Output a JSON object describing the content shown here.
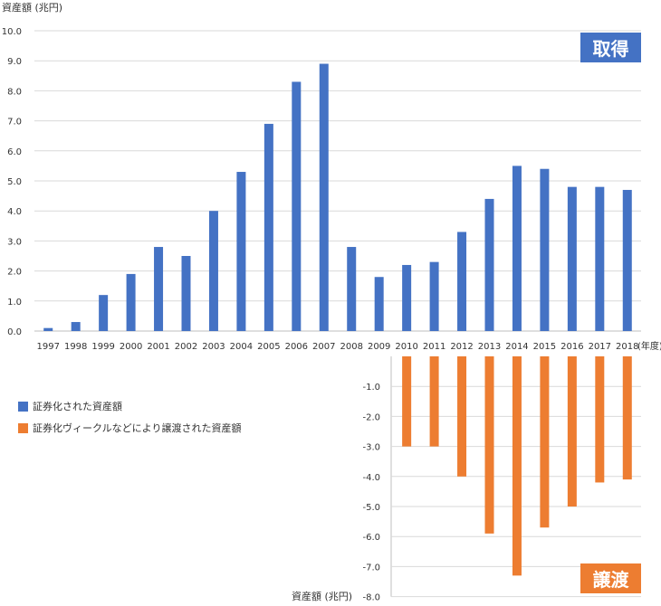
{
  "chart_data": {
    "type": "bar",
    "ylabel": "資産額 (兆円)",
    "xunit": "(年度)",
    "panels": {
      "acquisition": {
        "badge": "取得",
        "ylim": [
          0,
          10
        ],
        "yticks": [
          "0.0",
          "1.0",
          "2.0",
          "3.0",
          "4.0",
          "5.0",
          "6.0",
          "7.0",
          "8.0",
          "9.0",
          "10.0"
        ],
        "categories": [
          "1997",
          "1998",
          "1999",
          "2000",
          "2001",
          "2002",
          "2003",
          "2004",
          "2005",
          "2006",
          "2007",
          "2008",
          "2009",
          "2010",
          "2011",
          "2012",
          "2013",
          "2014",
          "2015",
          "2016",
          "2017",
          "2018"
        ],
        "values": [
          0.1,
          0.3,
          1.2,
          1.9,
          2.8,
          2.5,
          4.0,
          5.3,
          6.9,
          8.3,
          8.9,
          2.8,
          1.8,
          2.2,
          2.3,
          3.3,
          4.4,
          5.5,
          5.4,
          4.8,
          4.8,
          4.7
        ]
      },
      "transfer": {
        "badge": "譲渡",
        "ylim": [
          -8,
          0
        ],
        "yticks": [
          "-1.0",
          "-2.0",
          "-3.0",
          "-4.0",
          "-5.0",
          "-6.0",
          "-7.0",
          "-8.0"
        ],
        "categories": [
          "2010",
          "2011",
          "2012",
          "2013",
          "2014",
          "2015",
          "2016",
          "2017",
          "2018"
        ],
        "values": [
          -3.0,
          -3.0,
          -4.0,
          -5.9,
          -7.3,
          -5.7,
          -5.0,
          -4.2,
          -4.1
        ]
      }
    },
    "series": [
      {
        "name": "証券化された資産額",
        "color": "#4472c4"
      },
      {
        "name": "証券化ヴィークルなどにより譲渡された資産額",
        "color": "#ed7d31"
      }
    ],
    "grid": true
  }
}
